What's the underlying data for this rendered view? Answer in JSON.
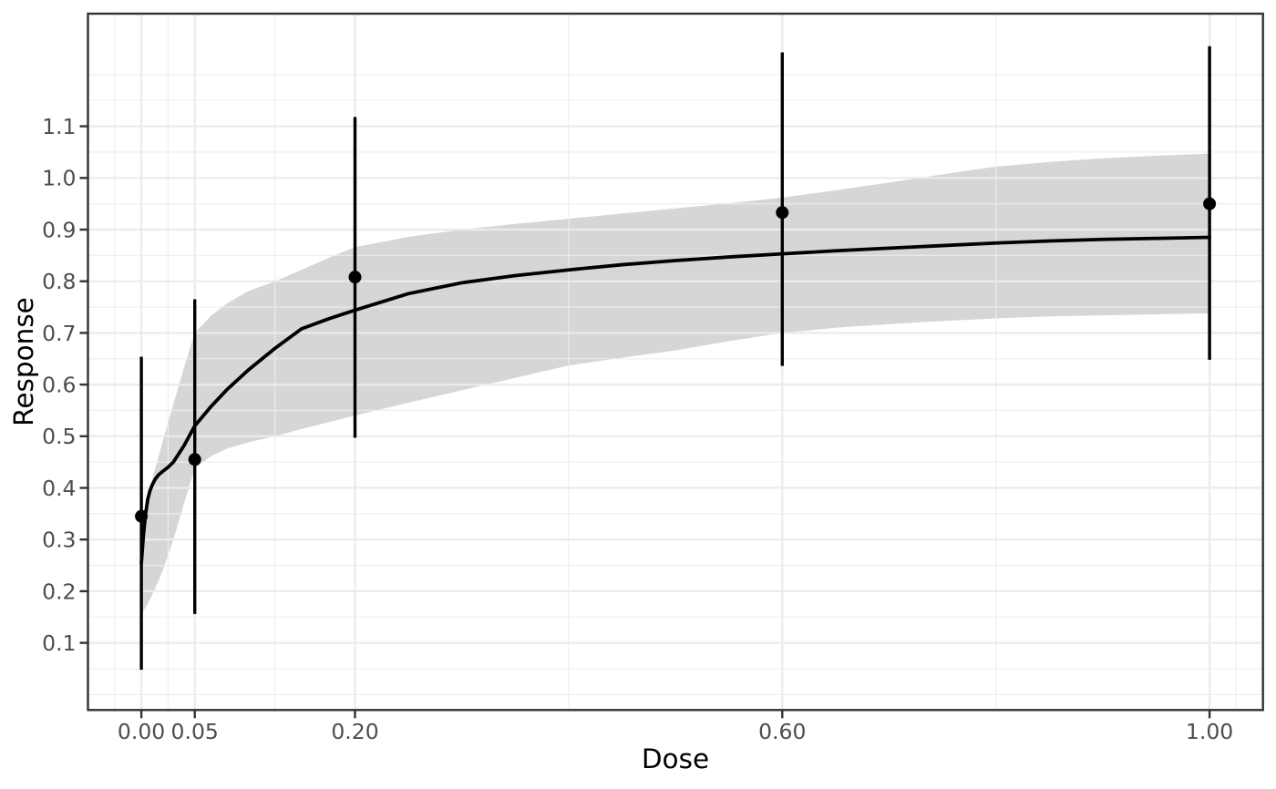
{
  "chart_data": {
    "type": "line",
    "title": "",
    "xlabel": "Dose",
    "ylabel": "Response",
    "legend": "none",
    "grid": "major+minor",
    "x_axis": {
      "range": [
        -0.05,
        1.05
      ],
      "ticks": [
        {
          "v": 0.0,
          "label": "0.00"
        },
        {
          "v": 0.05,
          "label": "0.05"
        },
        {
          "v": 0.2,
          "label": "0.20"
        },
        {
          "v": 0.6,
          "label": "0.60"
        },
        {
          "v": 1.0,
          "label": "1.00"
        }
      ],
      "minor": [
        -0.025,
        0.025,
        0.125,
        0.4,
        0.8,
        1.025
      ]
    },
    "y_axis": {
      "range": [
        -0.03,
        1.318
      ],
      "ticks": [
        {
          "v": 0.1,
          "label": "0.1"
        },
        {
          "v": 0.2,
          "label": "0.2"
        },
        {
          "v": 0.3,
          "label": "0.3"
        },
        {
          "v": 0.4,
          "label": "0.4"
        },
        {
          "v": 0.5,
          "label": "0.5"
        },
        {
          "v": 0.6,
          "label": "0.6"
        },
        {
          "v": 0.7,
          "label": "0.7"
        },
        {
          "v": 0.8,
          "label": "0.8"
        },
        {
          "v": 0.9,
          "label": "0.9"
        },
        {
          "v": 1.0,
          "label": "1.0"
        },
        {
          "v": 1.1,
          "label": "1.1"
        }
      ],
      "minor": [
        0.0,
        0.05,
        0.15,
        0.25,
        0.35,
        0.45,
        0.55,
        0.65,
        0.75,
        0.85,
        0.95,
        1.05,
        1.15,
        1.2
      ]
    },
    "points": [
      {
        "dose": 0.0,
        "response": 0.345,
        "lower": 0.048,
        "upper": 0.654
      },
      {
        "dose": 0.05,
        "response": 0.455,
        "lower": 0.156,
        "upper": 0.765
      },
      {
        "dose": 0.2,
        "response": 0.808,
        "lower": 0.497,
        "upper": 1.118
      },
      {
        "dose": 0.6,
        "response": 0.933,
        "lower": 0.636,
        "upper": 1.243
      },
      {
        "dose": 1.0,
        "response": 0.95,
        "lower": 0.648,
        "upper": 1.255
      }
    ],
    "fit": {
      "x": [
        0,
        0.002,
        0.004,
        0.006,
        0.008,
        0.01,
        0.013,
        0.016,
        0.02,
        0.025,
        0.03,
        0.04,
        0.05,
        0.065,
        0.08,
        0.1,
        0.125,
        0.15,
        0.175,
        0.2,
        0.25,
        0.3,
        0.35,
        0.4,
        0.45,
        0.5,
        0.55,
        0.6,
        0.65,
        0.7,
        0.75,
        0.8,
        0.85,
        0.9,
        0.95,
        1.0
      ],
      "y": [
        0.255,
        0.31,
        0.35,
        0.378,
        0.394,
        0.405,
        0.417,
        0.425,
        0.432,
        0.44,
        0.45,
        0.482,
        0.52,
        0.557,
        0.59,
        0.628,
        0.67,
        0.708,
        0.727,
        0.744,
        0.776,
        0.797,
        0.811,
        0.822,
        0.832,
        0.84,
        0.847,
        0.853,
        0.859,
        0.864,
        0.869,
        0.874,
        0.878,
        0.881,
        0.883,
        0.885
      ]
    },
    "ribbon": {
      "x": [
        0,
        0.005,
        0.01,
        0.015,
        0.02,
        0.03,
        0.04,
        0.05,
        0.065,
        0.08,
        0.1,
        0.125,
        0.15,
        0.175,
        0.2,
        0.25,
        0.3,
        0.35,
        0.4,
        0.45,
        0.5,
        0.55,
        0.6,
        0.65,
        0.7,
        0.75,
        0.8,
        0.85,
        0.9,
        0.95,
        1.0
      ],
      "upper": [
        0.34,
        0.376,
        0.415,
        0.453,
        0.49,
        0.563,
        0.633,
        0.7,
        0.733,
        0.757,
        0.781,
        0.8,
        0.822,
        0.845,
        0.866,
        0.886,
        0.9,
        0.911,
        0.921,
        0.931,
        0.941,
        0.951,
        0.962,
        0.976,
        0.991,
        1.007,
        1.022,
        1.031,
        1.038,
        1.043,
        1.047
      ],
      "lower": [
        0.155,
        0.172,
        0.192,
        0.215,
        0.24,
        0.3,
        0.37,
        0.438,
        0.461,
        0.476,
        0.488,
        0.5,
        0.514,
        0.527,
        0.54,
        0.565,
        0.589,
        0.613,
        0.637,
        0.652,
        0.666,
        0.684,
        0.7,
        0.71,
        0.717,
        0.723,
        0.728,
        0.732,
        0.734,
        0.736,
        0.738
      ]
    },
    "colors": {
      "background": "#ffffff",
      "panel_background": "#ffffff",
      "panel_border": "#333333",
      "grid_major": "#ebebeb",
      "grid_minor": "#ededed",
      "ribbon": "#d6d6d6",
      "line": "#000000",
      "point": "#000000",
      "tick": "#333333",
      "tick_label": "#4d4d4d",
      "axis_title": "#000000"
    }
  }
}
